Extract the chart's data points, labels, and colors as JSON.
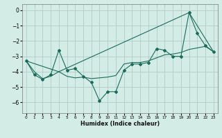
{
  "xlabel": "Humidex (Indice chaleur)",
  "xlim": [
    -0.5,
    23.5
  ],
  "ylim": [
    -6.7,
    0.4
  ],
  "yticks": [
    0,
    -1,
    -2,
    -3,
    -4,
    -5,
    -6
  ],
  "xticks": [
    0,
    1,
    2,
    3,
    4,
    5,
    6,
    7,
    8,
    9,
    10,
    11,
    12,
    13,
    14,
    15,
    16,
    17,
    18,
    19,
    20,
    21,
    22,
    23
  ],
  "bg_color": "#d4ece6",
  "grid_color": "#aeccc6",
  "line_color": "#1a6b5a",
  "series1_x": [
    0,
    1,
    2,
    3,
    4,
    5,
    6,
    7,
    8,
    9,
    10,
    11,
    12,
    13,
    14,
    15,
    16,
    17,
    18,
    19,
    20,
    21,
    22,
    23
  ],
  "series1_y": [
    -3.3,
    -4.2,
    -4.5,
    -4.2,
    -2.6,
    -3.9,
    -3.8,
    -4.3,
    -4.7,
    -5.9,
    -5.3,
    -5.3,
    -3.9,
    -3.5,
    -3.5,
    -3.4,
    -2.5,
    -2.6,
    -3.0,
    -3.0,
    -0.15,
    -1.5,
    -2.3,
    -2.7
  ],
  "series2_x": [
    0,
    1,
    2,
    3,
    4,
    5,
    6,
    7,
    8,
    9,
    10,
    11,
    12,
    13,
    14,
    15,
    16,
    17,
    18,
    19,
    20,
    21,
    22,
    23
  ],
  "series2_y": [
    -3.3,
    -4.0,
    -4.45,
    -4.3,
    -4.0,
    -4.3,
    -4.4,
    -4.35,
    -4.45,
    -4.4,
    -4.35,
    -4.25,
    -3.5,
    -3.4,
    -3.4,
    -3.3,
    -3.1,
    -2.9,
    -2.85,
    -2.75,
    -2.55,
    -2.45,
    -2.35,
    -2.7
  ],
  "series3_x": [
    0,
    4,
    20,
    23
  ],
  "series3_y": [
    -3.3,
    -4.0,
    -0.15,
    -2.7
  ]
}
